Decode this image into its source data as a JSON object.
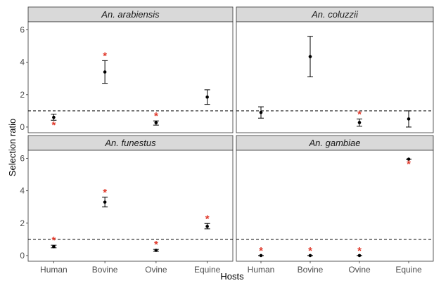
{
  "chart_data": {
    "type": "scatter",
    "xlabel": "Hosts",
    "ylabel": "Selection ratio",
    "categories": [
      "Human",
      "Bovine",
      "Ovine",
      "Equine"
    ],
    "y_ticks": [
      "0",
      "2",
      "4",
      "6"
    ],
    "ylim": [
      -0.35,
      6.5
    ],
    "reference_line": 1,
    "grid": false,
    "legend": "none",
    "colors": {
      "point": "#000000",
      "significance": "#e0392b",
      "strip": "#d9d9d9",
      "panel_border": "#333333",
      "reference": "#000000"
    },
    "panels": [
      {
        "title": "An. arabiensis",
        "points": [
          {
            "category": "Human",
            "value": 0.6,
            "lower": 0.42,
            "upper": 0.8,
            "sig_marker": "*",
            "sig_side": "below"
          },
          {
            "category": "Bovine",
            "value": 3.4,
            "lower": 2.7,
            "upper": 4.1,
            "sig_marker": "*",
            "sig_side": "above"
          },
          {
            "category": "Ovine",
            "value": 0.27,
            "lower": 0.12,
            "upper": 0.38,
            "sig_marker": "*",
            "sig_side": "above"
          },
          {
            "category": "Equine",
            "value": 1.85,
            "lower": 1.4,
            "upper": 2.3,
            "sig_marker": "",
            "sig_side": ""
          }
        ]
      },
      {
        "title": "An. coluzzii",
        "points": [
          {
            "category": "Human",
            "value": 0.9,
            "lower": 0.55,
            "upper": 1.25,
            "sig_marker": "",
            "sig_side": ""
          },
          {
            "category": "Bovine",
            "value": 4.35,
            "lower": 3.1,
            "upper": 5.6,
            "sig_marker": "",
            "sig_side": ""
          },
          {
            "category": "Ovine",
            "value": 0.28,
            "lower": 0.05,
            "upper": 0.5,
            "sig_marker": "*",
            "sig_side": "above"
          },
          {
            "category": "Equine",
            "value": 0.5,
            "lower": 0.0,
            "upper": 1.0,
            "sig_marker": "",
            "sig_side": ""
          }
        ]
      },
      {
        "title": "An. funestus",
        "points": [
          {
            "category": "Human",
            "value": 0.55,
            "lower": 0.48,
            "upper": 0.64,
            "sig_marker": "*",
            "sig_side": "above"
          },
          {
            "category": "Bovine",
            "value": 3.3,
            "lower": 3.0,
            "upper": 3.6,
            "sig_marker": "*",
            "sig_side": "above"
          },
          {
            "category": "Ovine",
            "value": 0.32,
            "lower": 0.26,
            "upper": 0.38,
            "sig_marker": "*",
            "sig_side": "above"
          },
          {
            "category": "Equine",
            "value": 1.8,
            "lower": 1.65,
            "upper": 1.98,
            "sig_marker": "*",
            "sig_side": "above"
          }
        ]
      },
      {
        "title": "An. gambiae",
        "points": [
          {
            "category": "Human",
            "value": 0.0,
            "lower": 0.0,
            "upper": 0.0,
            "sig_marker": "*",
            "sig_side": "above"
          },
          {
            "category": "Bovine",
            "value": 0.0,
            "lower": 0.0,
            "upper": 0.0,
            "sig_marker": "*",
            "sig_side": "above"
          },
          {
            "category": "Ovine",
            "value": 0.0,
            "lower": 0.0,
            "upper": 0.0,
            "sig_marker": "*",
            "sig_side": "above"
          },
          {
            "category": "Equine",
            "value": 5.95,
            "lower": 5.95,
            "upper": 5.95,
            "sig_marker": "*",
            "sig_side": "below"
          }
        ]
      }
    ]
  }
}
